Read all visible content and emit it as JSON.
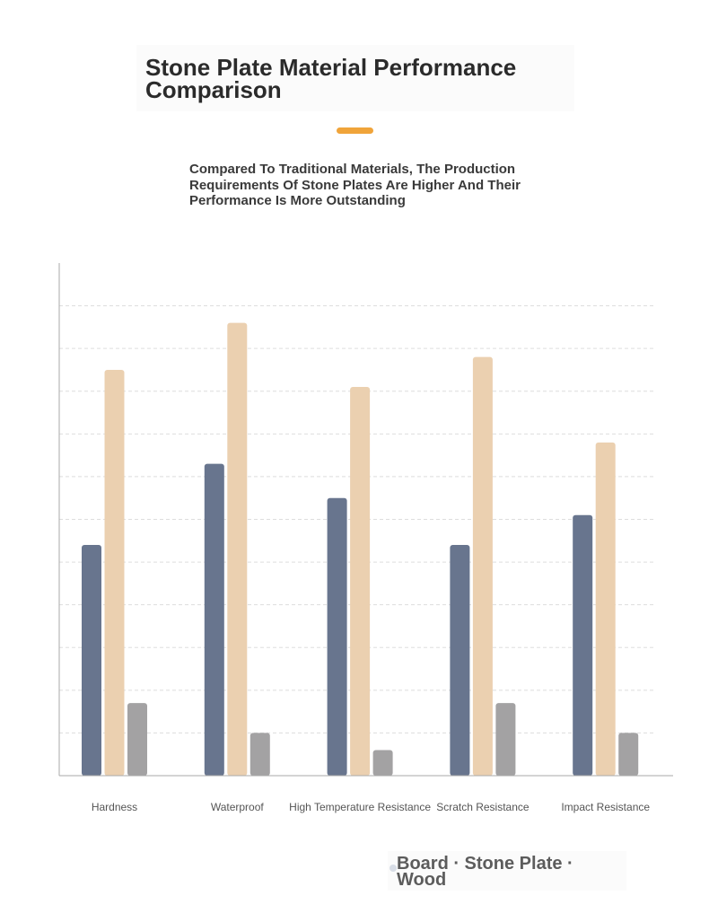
{
  "page": {
    "title": "Stone Plate Material Performance Comparison",
    "subtitle": "Compared To Traditional Materials, The Production Requirements Of Stone Plates Are Higher And Their Performance Is More Outstanding",
    "legend_text": "Board · Stone Plate · Wood"
  },
  "colors": {
    "accent": "#f0a43a",
    "board": "#68758e",
    "stone_plate": "#ebd0b0",
    "wood": "#a3a2a3",
    "grid": "#dddddd",
    "axis": "#aaaaaa"
  },
  "chart_data": {
    "type": "bar",
    "categories": [
      "Hardness",
      "Waterproof",
      "High Temperature Resistance",
      "Scratch Resistance",
      "Impact Resistance"
    ],
    "series": [
      {
        "name": "Board",
        "values": [
          5.4,
          7.3,
          6.5,
          5.4,
          6.1
        ]
      },
      {
        "name": "Stone Plate",
        "values": [
          9.5,
          10.6,
          9.1,
          9.8,
          7.8
        ]
      },
      {
        "name": "Wood",
        "values": [
          1.7,
          1.0,
          0.6,
          1.7,
          1.0
        ]
      }
    ],
    "ylim": [
      0,
      12
    ],
    "grid": "dashed horizontal",
    "legend": "bottom-right",
    "title": "",
    "xlabel": "",
    "ylabel": ""
  }
}
